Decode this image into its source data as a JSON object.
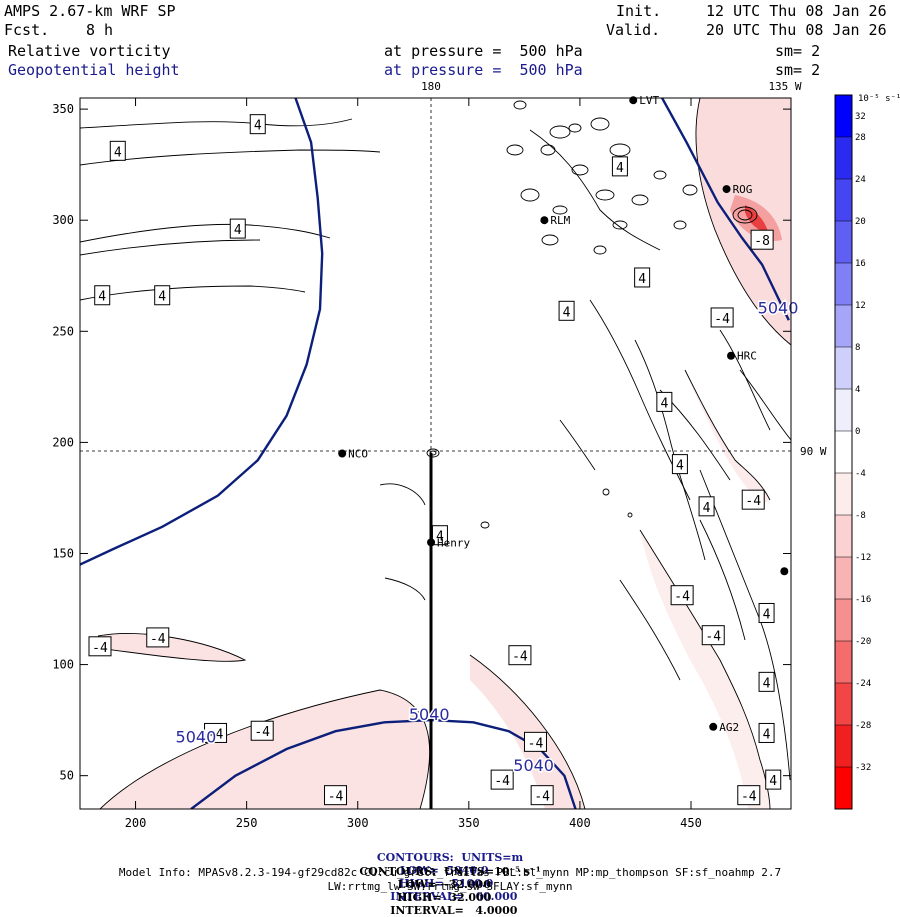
{
  "header": {
    "model": "AMPS 2.67-km WRF SP",
    "fcst_label": "Fcst.",
    "fcst_value": "8 h",
    "init_label": "Init.",
    "init_value": "12 UTC Thu 08 Jan 26",
    "valid_label": "Valid.",
    "valid_value": "20 UTC Thu 08 Jan 26",
    "field1": "Relative vorticity",
    "field1_level": "at pressure =  500 hPa",
    "field1_sm": "sm= 2",
    "field2": "Geopotential height",
    "field2_level": "at pressure =  500 hPa",
    "field2_sm": "sm= 2"
  },
  "footer": {
    "line1_units": "CONTOURS:  UNITS=m",
    "line1_low": "LOW=  5040.0",
    "line1_high": "HIGH=  5100.0",
    "line1_interval": "INTERVAL=   60.000",
    "line2_units": "CONTOURS:  UNITS=10⁻⁵ s⁻¹",
    "line2_low": "LOW=  -32.000",
    "line2_high": "HIGH=  32.000",
    "line2_interval": "INTERVAL=   4.0000",
    "model_info": "Model Info: MPASv8.2.3-194-gf29cd82c CU:cu_grell_freitas PBL:bl_mynn MP:mp_thompson SF:sf_noahmp 2.7",
    "model_info2": "LW:rrtmg_lw SW:rrtmg_sw SFLAY:sf_mynn"
  },
  "chart_data": {
    "type": "contour",
    "xlim": [
      175,
      495
    ],
    "ylim": [
      35,
      355
    ],
    "x_ticks": [
      200,
      250,
      300,
      350,
      400,
      450
    ],
    "y_ticks": [
      50,
      100,
      150,
      200,
      250,
      300,
      350
    ],
    "meridian_label": "180",
    "meridian_x": 333,
    "meridian_tr_label": "135 W",
    "parallel_label": "90 W",
    "parallel_y": 195,
    "colorbar": {
      "unit": "10⁻⁵ s⁻¹",
      "levels": [
        32,
        28,
        24,
        20,
        16,
        12,
        8,
        4,
        0,
        -4,
        -8,
        -12,
        -16,
        -20,
        -24,
        -28,
        -32
      ],
      "colors": [
        "#0000ff",
        "#2a2af0",
        "#4545f2",
        "#5f5ff4",
        "#8080f6",
        "#a6a6f8",
        "#cfcffb",
        "#eeeefd",
        "#ffffff",
        "#fdecec",
        "#fbd2d2",
        "#f8b4b4",
        "#f69090",
        "#f46c6c",
        "#f24545",
        "#f02020",
        "#ff0000"
      ]
    },
    "stations": [
      {
        "name": "NCO",
        "x": 293,
        "y": 195
      },
      {
        "name": "Henry",
        "x": 333,
        "y": 155
      },
      {
        "name": "HRC",
        "x": 468,
        "y": 239
      },
      {
        "name": "AG2",
        "x": 460,
        "y": 72
      },
      {
        "name": "RLM",
        "x": 384,
        "y": 300
      },
      {
        "name": "ROG",
        "x": 466,
        "y": 314
      },
      {
        "name": "LVT",
        "x": 424,
        "y": 354
      },
      {
        "name": "",
        "x": 492,
        "y": 142
      }
    ],
    "height_contours": [
      {
        "label": "5040",
        "label_x": 480,
        "label_y": 258,
        "points": [
          [
            437,
            355
          ],
          [
            448,
            335
          ],
          [
            462,
            308
          ],
          [
            473,
            292
          ],
          [
            482,
            280
          ],
          [
            494,
            255
          ]
        ]
      },
      {
        "label": "5040",
        "label_x": 218,
        "label_y": 65,
        "points": [
          [
            225,
            35
          ],
          [
            245,
            50
          ],
          [
            268,
            62
          ],
          [
            290,
            70
          ],
          [
            312,
            74
          ],
          [
            333,
            75
          ],
          [
            352,
            74
          ],
          [
            368,
            70
          ],
          [
            382,
            62
          ],
          [
            393,
            50
          ],
          [
            398,
            35
          ]
        ]
      },
      {
        "label": "5040",
        "label_x": 323,
        "label_y": 75,
        "points": []
      },
      {
        "label": "5040",
        "label_x": 370,
        "label_y": 52,
        "points": []
      },
      {
        "label": "",
        "label_x": 0,
        "label_y": 0,
        "points": [
          [
            272,
            355
          ],
          [
            279,
            335
          ],
          [
            282,
            310
          ],
          [
            284,
            285
          ],
          [
            283,
            260
          ],
          [
            277,
            235
          ],
          [
            268,
            212
          ],
          [
            255,
            192
          ],
          [
            237,
            176
          ],
          [
            212,
            162
          ],
          [
            190,
            152
          ],
          [
            175,
            145
          ]
        ]
      }
    ],
    "vorticity_labels": [
      {
        "label": "4",
        "x": 255,
        "y": 343
      },
      {
        "label": "4",
        "x": 192,
        "y": 331
      },
      {
        "label": "4",
        "x": 246,
        "y": 296
      },
      {
        "label": "4",
        "x": 185,
        "y": 266
      },
      {
        "label": "4",
        "x": 212,
        "y": 266
      },
      {
        "label": "4",
        "x": 418,
        "y": 324
      },
      {
        "label": "4",
        "x": 428,
        "y": 274
      },
      {
        "label": "4",
        "x": 394,
        "y": 259
      },
      {
        "label": "4",
        "x": 438,
        "y": 218
      },
      {
        "label": "4",
        "x": 445,
        "y": 190
      },
      {
        "label": "4",
        "x": 457,
        "y": 171
      },
      {
        "label": "4",
        "x": 337,
        "y": 158
      },
      {
        "label": "4",
        "x": 484,
        "y": 123
      },
      {
        "label": "4",
        "x": 484,
        "y": 92
      },
      {
        "label": "4",
        "x": 484,
        "y": 69
      },
      {
        "label": "4",
        "x": 487,
        "y": 48
      },
      {
        "label": "-8",
        "x": 482,
        "y": 291
      },
      {
        "label": "-4",
        "x": 464,
        "y": 256
      },
      {
        "label": "-4",
        "x": 478,
        "y": 174
      },
      {
        "label": "-4",
        "x": 446,
        "y": 131
      },
      {
        "label": "-4",
        "x": 460,
        "y": 113
      },
      {
        "label": "-4",
        "x": 184,
        "y": 108
      },
      {
        "label": "-4",
        "x": 210,
        "y": 112
      },
      {
        "label": "-4",
        "x": 373,
        "y": 104
      },
      {
        "label": "-4",
        "x": 236,
        "y": 69
      },
      {
        "label": "-4",
        "x": 257,
        "y": 70
      },
      {
        "label": "-4",
        "x": 380,
        "y": 65
      },
      {
        "label": "-4",
        "x": 365,
        "y": 48
      },
      {
        "label": "-4",
        "x": 383,
        "y": 41
      },
      {
        "label": "-4",
        "x": 290,
        "y": 41
      },
      {
        "label": "-4",
        "x": 476,
        "y": 41
      }
    ]
  }
}
